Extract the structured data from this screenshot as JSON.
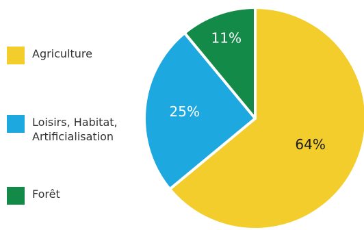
{
  "chart_data": {
    "type": "pie",
    "title": "",
    "slices": [
      {
        "label": "Agriculture",
        "value": 64,
        "display": "64%",
        "color": "#f2cd2c",
        "text_color": "#1a1a1a"
      },
      {
        "label": "Loisirs, Habitat,\nArtificialisation",
        "value": 25,
        "display": "25%",
        "color": "#1ea8e0",
        "text_color": "#ffffff"
      },
      {
        "label": "Forêt",
        "value": 11,
        "display": "11%",
        "color": "#138a48",
        "text_color": "#ffffff"
      }
    ],
    "legend_position": "left"
  }
}
